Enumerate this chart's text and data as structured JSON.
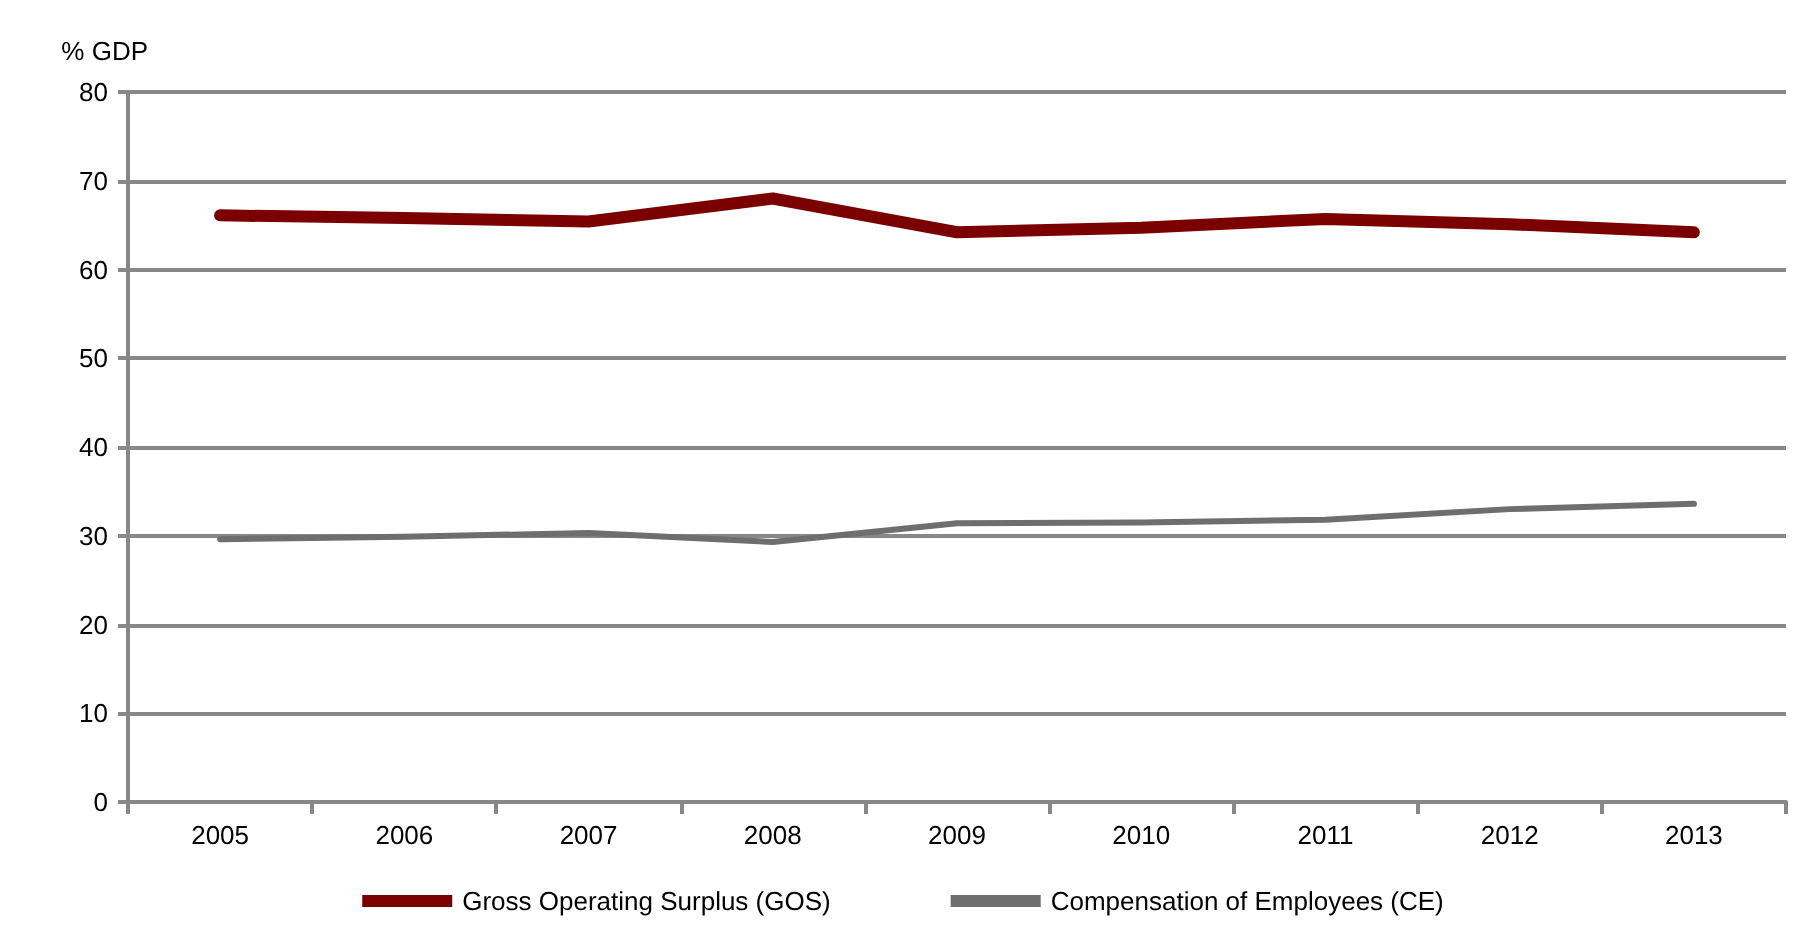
{
  "chart_data": {
    "type": "line",
    "ylabel": "% GDP",
    "categories": [
      "2005",
      "2006",
      "2007",
      "2008",
      "2009",
      "2010",
      "2011",
      "2012",
      "2013"
    ],
    "series": [
      {
        "name": "Gross Operating Surplus (GOS)",
        "color": "#7b0000",
        "values": [
          66.1,
          65.8,
          65.4,
          68.0,
          64.2,
          64.7,
          65.7,
          65.1,
          64.2
        ]
      },
      {
        "name": "Compensation of Employees (CE)",
        "color": "#6e6e6e",
        "values": [
          29.6,
          29.9,
          30.3,
          29.3,
          31.4,
          31.5,
          31.8,
          33.0,
          33.6
        ]
      }
    ],
    "ylim": [
      0,
      80
    ],
    "yticks": [
      0,
      10,
      20,
      30,
      40,
      50,
      60,
      70,
      80
    ],
    "grid": "y",
    "legend": "bottom",
    "marker": "none",
    "line_style": "solid"
  }
}
